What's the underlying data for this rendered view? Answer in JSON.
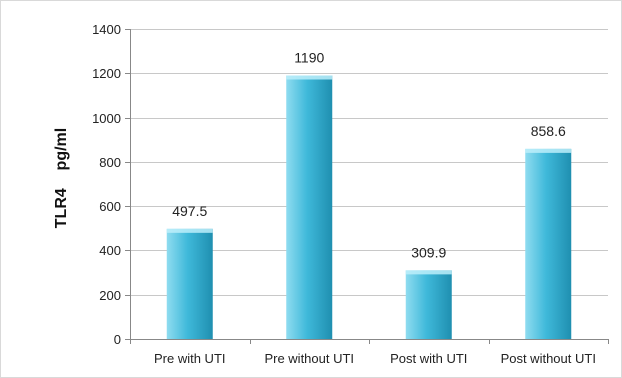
{
  "chart_data": {
    "type": "bar",
    "title": "",
    "xlabel": "",
    "ylabel": "TLR4    pg/ml",
    "categories": [
      "Pre with UTI",
      "Pre without UTI",
      "Post with UTI",
      "Post without UTI"
    ],
    "values": [
      497.5,
      1190,
      309.9,
      858.6
    ],
    "data_labels": [
      "497.5",
      "1190",
      "309.9",
      "858.6"
    ],
    "ylim": [
      0,
      1400
    ],
    "yticks": [
      0,
      200,
      400,
      600,
      800,
      1000,
      1200,
      1400
    ],
    "grid": true,
    "legend": "none",
    "colors": {
      "bar_light": "#8fdcf0",
      "bar_mid": "#3fb9da",
      "bar_dark": "#1f8fb0",
      "bar_top": "#bdeefa",
      "grid": "#c8c8c8",
      "axis": "#888888"
    }
  }
}
